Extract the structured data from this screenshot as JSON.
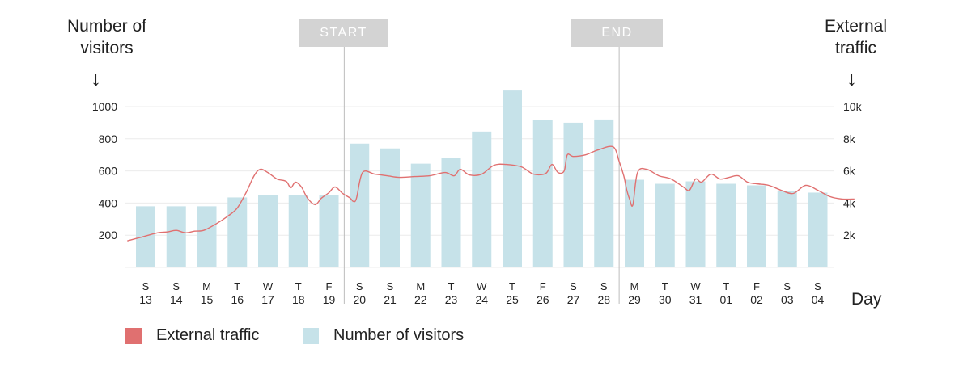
{
  "chart_data": {
    "type": "bar",
    "title": "",
    "y_left_label": "Number of visitors",
    "y_right_label": "External traffic",
    "xlabel": "Day",
    "categories": [
      {
        "day": "S",
        "date": "13"
      },
      {
        "day": "S",
        "date": "14"
      },
      {
        "day": "M",
        "date": "15"
      },
      {
        "day": "T",
        "date": "16"
      },
      {
        "day": "W",
        "date": "17"
      },
      {
        "day": "T",
        "date": "18"
      },
      {
        "day": "F",
        "date": "19"
      },
      {
        "day": "S",
        "date": "20"
      },
      {
        "day": "S",
        "date": "21"
      },
      {
        "day": "M",
        "date": "22"
      },
      {
        "day": "T",
        "date": "23"
      },
      {
        "day": "W",
        "date": "24"
      },
      {
        "day": "T",
        "date": "25"
      },
      {
        "day": "F",
        "date": "26"
      },
      {
        "day": "S",
        "date": "27"
      },
      {
        "day": "S",
        "date": "28"
      },
      {
        "day": "M",
        "date": "29"
      },
      {
        "day": "T",
        "date": "30"
      },
      {
        "day": "W",
        "date": "31"
      },
      {
        "day": "T",
        "date": "01"
      },
      {
        "day": "F",
        "date": "02"
      },
      {
        "day": "S",
        "date": "03"
      },
      {
        "day": "S",
        "date": "04"
      }
    ],
    "series": [
      {
        "name": "Number of visitors",
        "type": "bar",
        "axis": "left",
        "color": "#c6e2e9",
        "values": [
          380,
          380,
          380,
          435,
          450,
          450,
          450,
          770,
          740,
          645,
          680,
          845,
          1100,
          915,
          900,
          920,
          545,
          520,
          535,
          520,
          510,
          475,
          465
        ]
      },
      {
        "name": "External traffic",
        "type": "line",
        "axis": "right",
        "color": "#e07070",
        "points": [
          [
            -0.6,
            1650
          ],
          [
            -0.2,
            1850
          ],
          [
            0.4,
            2150
          ],
          [
            0.7,
            2200
          ],
          [
            1.0,
            2300
          ],
          [
            1.3,
            2150
          ],
          [
            1.6,
            2250
          ],
          [
            1.9,
            2300
          ],
          [
            2.3,
            2700
          ],
          [
            2.7,
            3200
          ],
          [
            3.0,
            3700
          ],
          [
            3.3,
            4700
          ],
          [
            3.55,
            5700
          ],
          [
            3.75,
            6100
          ],
          [
            4.0,
            5900
          ],
          [
            4.3,
            5500
          ],
          [
            4.6,
            5350
          ],
          [
            4.75,
            4950
          ],
          [
            4.9,
            5300
          ],
          [
            5.1,
            5000
          ],
          [
            5.3,
            4300
          ],
          [
            5.55,
            3900
          ],
          [
            5.75,
            4300
          ],
          [
            6.0,
            4650
          ],
          [
            6.2,
            5000
          ],
          [
            6.45,
            4600
          ],
          [
            6.7,
            4300
          ],
          [
            6.8,
            4100
          ],
          [
            6.9,
            4300
          ],
          [
            7.1,
            5900
          ],
          [
            7.5,
            5800
          ],
          [
            7.9,
            5700
          ],
          [
            8.3,
            5600
          ],
          [
            8.8,
            5650
          ],
          [
            9.3,
            5700
          ],
          [
            9.8,
            5900
          ],
          [
            10.1,
            5700
          ],
          [
            10.3,
            6100
          ],
          [
            10.6,
            5750
          ],
          [
            11.0,
            5800
          ],
          [
            11.4,
            6350
          ],
          [
            11.8,
            6400
          ],
          [
            12.3,
            6250
          ],
          [
            12.7,
            5800
          ],
          [
            13.1,
            5850
          ],
          [
            13.3,
            6400
          ],
          [
            13.5,
            5900
          ],
          [
            13.7,
            6000
          ],
          [
            13.8,
            7000
          ],
          [
            14.0,
            6900
          ],
          [
            14.4,
            7000
          ],
          [
            14.8,
            7300
          ],
          [
            15.3,
            7500
          ],
          [
            15.5,
            6600
          ],
          [
            15.65,
            5700
          ],
          [
            15.75,
            4800
          ],
          [
            15.85,
            4200
          ],
          [
            15.95,
            3900
          ],
          [
            16.1,
            5900
          ],
          [
            16.4,
            6100
          ],
          [
            16.8,
            5700
          ],
          [
            17.2,
            5500
          ],
          [
            17.6,
            5000
          ],
          [
            17.8,
            4800
          ],
          [
            18.0,
            5500
          ],
          [
            18.2,
            5300
          ],
          [
            18.5,
            5800
          ],
          [
            18.8,
            5500
          ],
          [
            19.1,
            5600
          ],
          [
            19.4,
            5700
          ],
          [
            19.7,
            5300
          ],
          [
            20.0,
            5200
          ],
          [
            20.4,
            5100
          ],
          [
            20.8,
            4800
          ],
          [
            21.2,
            4600
          ],
          [
            21.6,
            5100
          ],
          [
            22.0,
            4800
          ],
          [
            22.4,
            4400
          ],
          [
            22.8,
            4250
          ],
          [
            23.2,
            4250
          ]
        ]
      }
    ],
    "y_left_ticks": [
      "200",
      "400",
      "600",
      "800",
      "1000"
    ],
    "y_left_range": [
      0,
      1000
    ],
    "y_right_ticks": [
      "2k",
      "4k",
      "6k",
      "8k",
      "10k"
    ],
    "y_right_range": [
      0,
      10000
    ],
    "grid": true,
    "markers": [
      {
        "label": "START",
        "after_index": 6
      },
      {
        "label": "END",
        "after_index": 15
      }
    ],
    "legend": {
      "position": "bottom-left",
      "items": [
        {
          "label": "External traffic",
          "color": "#e07070"
        },
        {
          "label": "Number of visitors",
          "color": "#c6e2e9"
        }
      ]
    }
  }
}
